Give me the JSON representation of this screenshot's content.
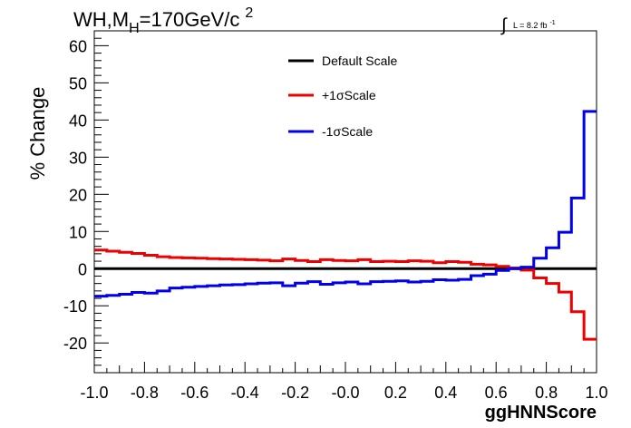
{
  "chart_data": {
    "type": "line",
    "style": "step",
    "title": {
      "main": "WH,M",
      "sub": "H",
      "rest": "=170GeV/c",
      "sup": "2"
    },
    "lumi": {
      "integral_sign": "∫",
      "text": "L = 8.2 fb",
      "sup": "-1"
    },
    "xlabel": "ggHNNScore",
    "ylabel": "% Change",
    "xlim": [
      -1.0,
      1.0
    ],
    "ylim": [
      -28,
      64
    ],
    "xticks": [
      "-1.0",
      "-0.8",
      "-0.6",
      "-0.4",
      "-0.2",
      "-0.0",
      "0.2",
      "0.4",
      "0.6",
      "0.8",
      "1.0"
    ],
    "yticks": [
      "60",
      "50",
      "40",
      "30",
      "20",
      "10",
      "0",
      "-10",
      "-20"
    ],
    "legend_position": "top-center",
    "grid": false,
    "bin_edges": [
      -1.0,
      -0.95,
      -0.9,
      -0.85,
      -0.8,
      -0.75,
      -0.7,
      -0.65,
      -0.6,
      -0.55,
      -0.5,
      -0.45,
      -0.4,
      -0.35,
      -0.3,
      -0.25,
      -0.2,
      -0.15,
      -0.1,
      -0.05,
      0.0,
      0.05,
      0.1,
      0.15,
      0.2,
      0.25,
      0.3,
      0.35,
      0.4,
      0.45,
      0.5,
      0.55,
      0.6,
      0.65,
      0.7,
      0.75,
      0.8,
      0.85,
      0.9,
      0.95,
      1.0
    ],
    "series": [
      {
        "name": "Default Scale",
        "color": "#000000",
        "values": [
          0,
          0,
          0,
          0,
          0,
          0,
          0,
          0,
          0,
          0,
          0,
          0,
          0,
          0,
          0,
          0,
          0,
          0,
          0,
          0,
          0,
          0,
          0,
          0,
          0,
          0,
          0,
          0,
          0,
          0,
          0,
          0,
          0,
          0,
          0,
          0,
          0,
          0,
          0,
          0
        ]
      },
      {
        "name": "+1σScale",
        "color": "#ee0000",
        "values": [
          5.0,
          4.7,
          4.4,
          4.1,
          3.6,
          3.2,
          3.0,
          2.9,
          2.8,
          2.7,
          2.6,
          2.5,
          2.4,
          2.3,
          2.1,
          2.6,
          2.2,
          1.9,
          2.4,
          2.2,
          2.1,
          2.4,
          1.9,
          2.0,
          1.9,
          2.1,
          2.0,
          1.6,
          1.9,
          1.7,
          1.2,
          1.0,
          0.6,
          0.2,
          -0.4,
          -2.5,
          -4.0,
          -6.3,
          -11.6,
          -19.0
        ]
      },
      {
        "name": "-1σScale",
        "color": "#0000ee",
        "values": [
          -7.4,
          -7.2,
          -6.9,
          -6.4,
          -6.6,
          -6.0,
          -5.2,
          -5.0,
          -4.8,
          -4.6,
          -4.4,
          -4.3,
          -4.1,
          -3.9,
          -3.8,
          -4.6,
          -3.9,
          -3.5,
          -4.2,
          -3.8,
          -3.6,
          -4.1,
          -3.5,
          -3.4,
          -3.3,
          -3.6,
          -3.4,
          -3.0,
          -3.1,
          -2.9,
          -1.9,
          -1.5,
          -0.5,
          0.0,
          0.4,
          2.8,
          5.6,
          9.8,
          19.0,
          42.3
        ]
      }
    ]
  }
}
